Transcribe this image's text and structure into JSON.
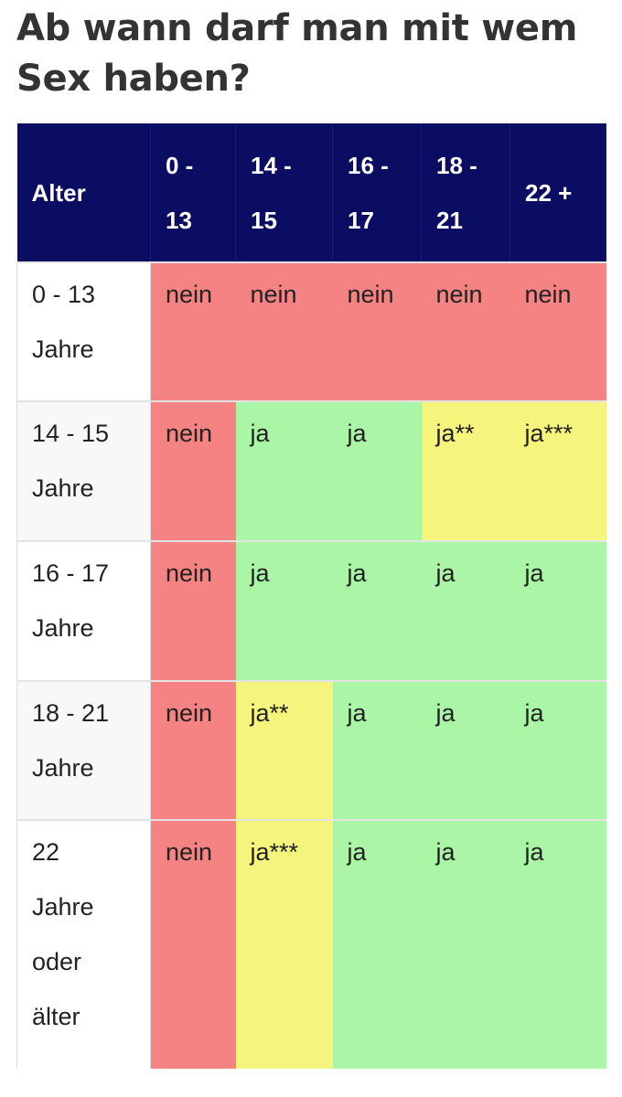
{
  "title": "Ab wann darf man mit wem Sex haben?",
  "table": {
    "corner": "Alter",
    "columns": [
      {
        "line1": "0 -",
        "line2": "13"
      },
      {
        "line1": "14 -",
        "line2": "15"
      },
      {
        "line1": "16 -",
        "line2": "17"
      },
      {
        "line1": "18 -",
        "line2": "21"
      },
      {
        "line1": "22 +",
        "line2": ""
      }
    ],
    "rows": [
      {
        "label_lines": [
          "0 - 13",
          "Jahre"
        ],
        "cells": [
          "nein",
          "nein",
          "nein",
          "nein",
          "nein"
        ]
      },
      {
        "label_lines": [
          "14 - 15",
          "Jahre"
        ],
        "cells": [
          "nein",
          "ja",
          "ja",
          "ja**",
          "ja***"
        ]
      },
      {
        "label_lines": [
          "16 - 17",
          "Jahre"
        ],
        "cells": [
          "nein",
          "ja",
          "ja",
          "ja",
          "ja"
        ]
      },
      {
        "label_lines": [
          "18 - 21",
          "Jahre"
        ],
        "cells": [
          "nein",
          "ja**",
          "ja",
          "ja",
          "ja"
        ]
      },
      {
        "label_lines": [
          "22",
          "Jahre",
          "oder",
          "älter"
        ],
        "cells": [
          "nein",
          "ja***",
          "ja",
          "ja",
          "ja"
        ]
      }
    ]
  },
  "colors": {
    "header_bg": "#0b0d62",
    "nein": "#f58383",
    "ja": "#aaf5a6",
    "ja_conditional": "#f5f57e"
  }
}
